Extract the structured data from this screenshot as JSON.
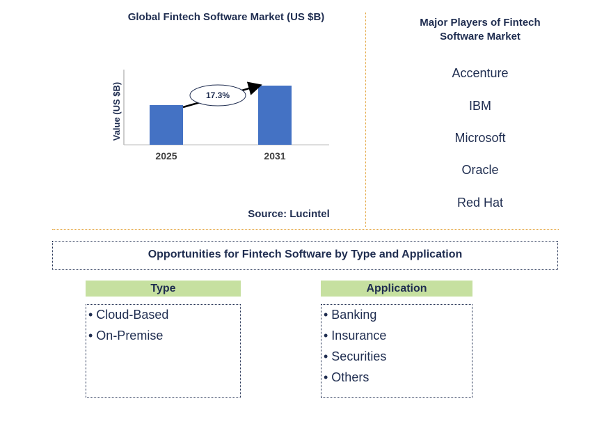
{
  "chart_data": {
    "type": "bar",
    "title": "Global Fintech Software Market (US $B)",
    "ylabel": "Value (US $B)",
    "categories": [
      "2025",
      "2031"
    ],
    "values": [
      57,
      85
    ],
    "bar_color": "#4472c4",
    "annotation": "17.3%",
    "ylim": [
      0,
      100
    ],
    "grid": false
  },
  "source": "Source: Lucintel",
  "players": {
    "title": "Major Players of Fintech Software Market",
    "items": [
      "Accenture",
      "IBM",
      "Microsoft",
      "Oracle",
      "Red Hat"
    ]
  },
  "opportunities": {
    "title": "Opportunities for Fintech Software by Type and Application",
    "type_header": "Type",
    "type_items": [
      "• Cloud-Based",
      "• On-Premise"
    ],
    "application_header": "Application",
    "application_items": [
      "• Banking",
      "• Insurance",
      "• Securities",
      "• Others"
    ]
  },
  "colors": {
    "text": "#1f2d50",
    "header_fill": "#c6e0a0",
    "divider": "#e3a33a"
  }
}
